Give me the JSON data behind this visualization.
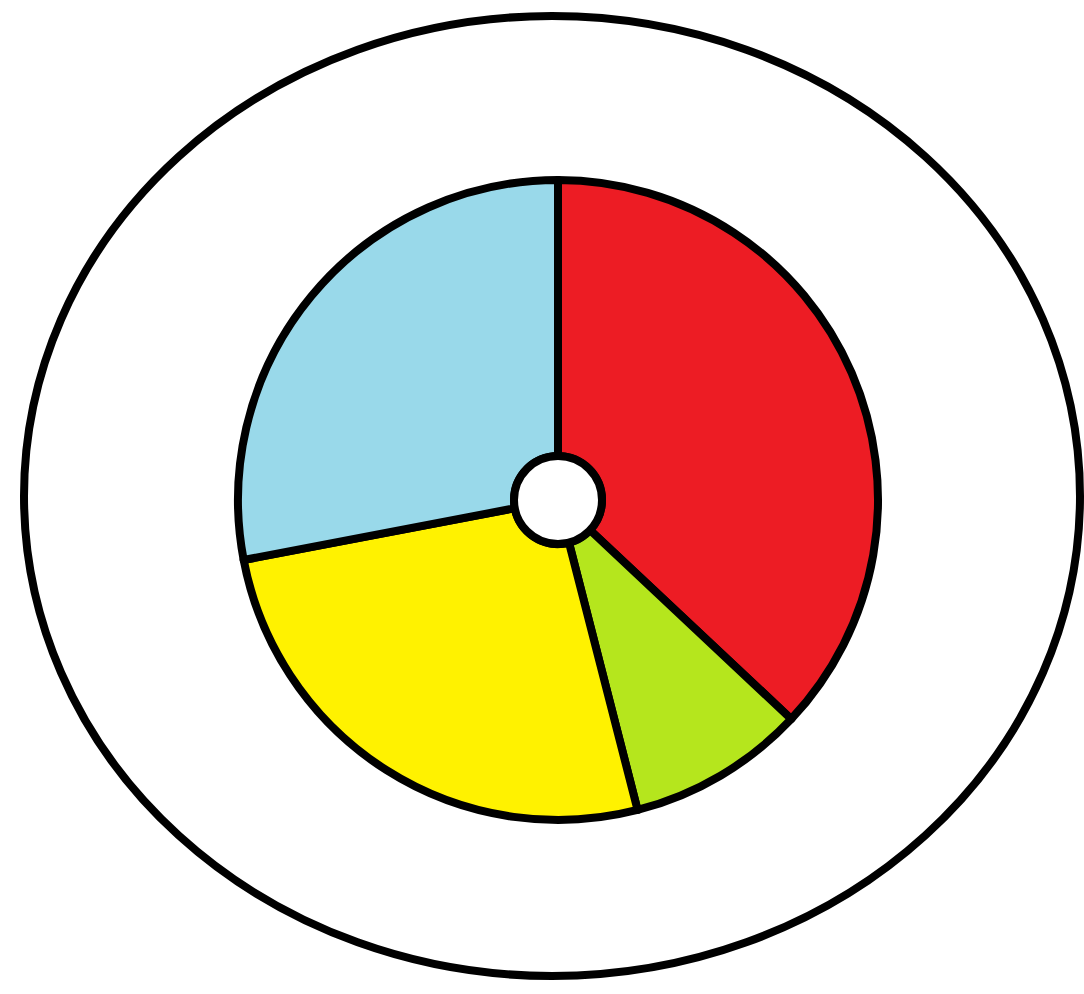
{
  "chart_data": {
    "type": "donut",
    "categories": [
      null,
      null,
      null,
      null
    ],
    "values": [
      37,
      9,
      26,
      28
    ],
    "colors": [
      "#ed1c24",
      "#b5e61d",
      "#fff200",
      "#99d9ea"
    ]
  }
}
